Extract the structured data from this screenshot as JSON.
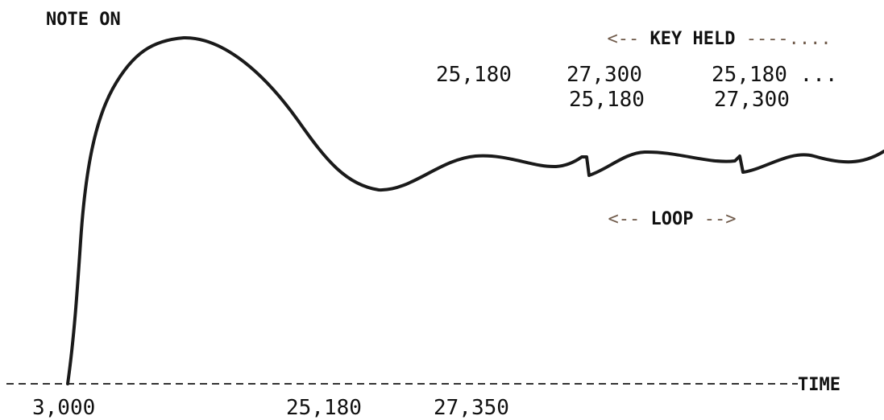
{
  "labels": {
    "note_on": "NOTE ON",
    "key_held_prefix": "<-- ",
    "key_held": "KEY HELD",
    "key_held_suffix": " ----....",
    "loop_prefix": "<-- ",
    "loop": "LOOP",
    "loop_suffix": " -->",
    "time": "TIME"
  },
  "top_row_1": [
    "25,180",
    "27,300",
    "25,180 ..."
  ],
  "top_row_2": [
    "25,180",
    "27,300"
  ],
  "axis_values": [
    "3,000",
    "25,180",
    "27,350"
  ],
  "colors": {
    "curve": "#1a1a1a",
    "axis": "#333333",
    "annotation": "#6f5a4a"
  }
}
